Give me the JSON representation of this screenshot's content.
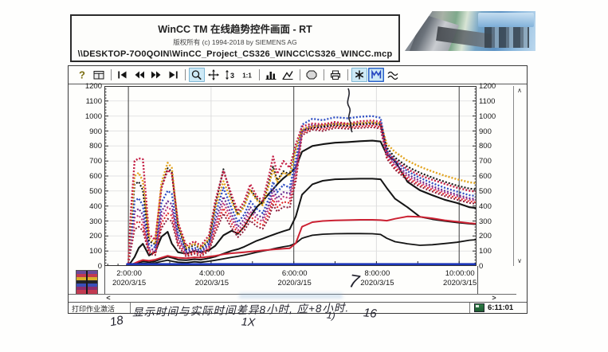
{
  "header": {
    "title": "WinCC TM 在线趋势控件画面 - RT",
    "copyright": "版权所有 (c) 1994-2018 by SIEMENS AG",
    "project_path": "\\\\DESKTOP-7O0QOIN\\WinCC_Project_CS326_WINCC\\CS326_WINCC.mcp"
  },
  "toolbar": {
    "buttons": [
      {
        "name": "help"
      },
      {
        "name": "dialog"
      },
      {
        "name": "sep"
      },
      {
        "name": "first"
      },
      {
        "name": "prev"
      },
      {
        "name": "next"
      },
      {
        "name": "last"
      },
      {
        "name": "sep"
      },
      {
        "name": "zoom-area",
        "highlighted": true
      },
      {
        "name": "move"
      },
      {
        "name": "scale-vertical"
      },
      {
        "name": "one-one"
      },
      {
        "name": "sep"
      },
      {
        "name": "bars"
      },
      {
        "name": "curve"
      },
      {
        "name": "sep"
      },
      {
        "name": "stop"
      },
      {
        "name": "sep"
      },
      {
        "name": "print"
      },
      {
        "name": "sep"
      },
      {
        "name": "star",
        "highlighted": true
      },
      {
        "name": "save",
        "highlighted": true,
        "strong": true
      },
      {
        "name": "curves"
      }
    ]
  },
  "scrollbars": {
    "up": "∧",
    "down": "∨",
    "left": "<",
    "right": ">"
  },
  "statusbar": {
    "print_job": "打印作业激活",
    "time": "6:11:01"
  },
  "annotations": {
    "sentence": "显示时间与实际时间差异8小时, 应+8小时.",
    "mark_7": "7",
    "mark_18": "18",
    "mark_1x": "1X",
    "mark_paren": "1)",
    "mark_16": "16"
  },
  "chart_data": {
    "type": "line",
    "title": "WinCC online trend control",
    "ylim": [
      0,
      1200
    ],
    "y_tick_step": 100,
    "x_range_hours": [
      1.42,
      10.42
    ],
    "x_ticks": [
      {
        "hour": 2,
        "time": "2:00:00",
        "date": "2020/3/15"
      },
      {
        "hour": 4,
        "time": "4:00:00",
        "date": "2020/3/15"
      },
      {
        "hour": 6,
        "time": "6:00:00",
        "date": "2020/3/15"
      },
      {
        "hour": 8,
        "time": "8:00:00",
        "date": "2020/3/15"
      },
      {
        "hour": 10,
        "time": "10:00:00",
        "date": "2020/3/15"
      }
    ],
    "dark_vlines_hours": [
      2,
      6,
      10
    ],
    "light_vlines_hours": [
      4,
      8
    ],
    "x": [
      1.95,
      2.0,
      2.05,
      2.15,
      2.25,
      2.35,
      2.5,
      2.65,
      2.8,
      2.95,
      3.05,
      3.2,
      3.4,
      3.6,
      3.75,
      3.95,
      4.1,
      4.3,
      4.5,
      4.65,
      4.8,
      4.95,
      5.1,
      5.25,
      5.4,
      5.5,
      5.6,
      5.75,
      5.9,
      6.05,
      6.2,
      6.45,
      6.7,
      7.0,
      7.3,
      7.6,
      7.9,
      8.1,
      8.25,
      8.45,
      8.75,
      9.05,
      9.35,
      9.65,
      9.95,
      10.25,
      10.42
    ],
    "series": [
      {
        "name": "pen-black-low",
        "color": "#151515",
        "width": 1.8,
        "dash": false,
        "y": [
          1,
          2,
          4,
          8,
          14,
          18,
          15,
          20,
          30,
          38,
          32,
          25,
          22,
          28,
          25,
          32,
          38,
          48,
          58,
          64,
          72,
          82,
          92,
          100,
          108,
          114,
          120,
          128,
          135,
          152,
          185,
          205,
          212,
          215,
          216,
          216,
          215,
          210,
          185,
          162,
          148,
          138,
          142,
          150,
          158,
          172,
          175
        ]
      },
      {
        "name": "pen-black-mid",
        "color": "#151515",
        "width": 2,
        "dash": false,
        "y": [
          1,
          2,
          5,
          12,
          22,
          30,
          25,
          32,
          48,
          62,
          55,
          42,
          38,
          45,
          42,
          52,
          62,
          82,
          102,
          112,
          128,
          148,
          168,
          182,
          198,
          208,
          218,
          232,
          245,
          330,
          475,
          545,
          568,
          578,
          580,
          582,
          582,
          578,
          520,
          448,
          392,
          328,
          312,
          300,
          290,
          282,
          278
        ]
      },
      {
        "name": "pen-black-high",
        "color": "#151515",
        "width": 2.1,
        "dash": false,
        "y": [
          2,
          3,
          20,
          60,
          120,
          148,
          70,
          95,
          195,
          228,
          150,
          92,
          82,
          100,
          92,
          105,
          135,
          205,
          235,
          215,
          262,
          330,
          392,
          432,
          482,
          512,
          545,
          585,
          618,
          658,
          762,
          800,
          812,
          822,
          826,
          832,
          836,
          830,
          742,
          700,
          562,
          505,
          472,
          442,
          420,
          392,
          386
        ]
      },
      {
        "name": "pen-red-solid",
        "color": "#cc2233",
        "width": 2,
        "dash": false,
        "y": [
          2,
          3,
          8,
          18,
          30,
          40,
          35,
          42,
          55,
          68,
          62,
          55,
          52,
          58,
          56,
          62,
          68,
          78,
          85,
          88,
          92,
          96,
          100,
          104,
          108,
          110,
          112,
          115,
          118,
          152,
          262,
          292,
          300,
          304,
          306,
          308,
          308,
          306,
          302,
          315,
          330,
          328,
          318,
          305,
          295,
          285,
          282
        ]
      },
      {
        "name": "pen-darkred",
        "color": "#8e1d3c",
        "width": 2,
        "dash": true,
        "y": [
          5,
          8,
          95,
          245,
          262,
          235,
          82,
          72,
          252,
          315,
          298,
          135,
          62,
          82,
          62,
          102,
          218,
          350,
          252,
          192,
          235,
          302,
          265,
          248,
          322,
          408,
          362,
          395,
          388,
          565,
          872,
          908,
          900,
          920,
          915,
          920,
          925,
          916,
          716,
          642,
          572,
          530,
          496,
          466,
          442,
          420,
          414
        ]
      },
      {
        "name": "pen-red2",
        "color": "#e02828",
        "width": 2,
        "dash": true,
        "y": [
          5,
          8,
          112,
          282,
          298,
          268,
          95,
          82,
          285,
          352,
          335,
          152,
          72,
          92,
          72,
          115,
          245,
          385,
          282,
          215,
          260,
          332,
          292,
          272,
          352,
          442,
          392,
          428,
          420,
          595,
          882,
          918,
          910,
          930,
          925,
          930,
          935,
          926,
          728,
          655,
          585,
          542,
          508,
          478,
          453,
          430,
          424
        ]
      },
      {
        "name": "pen-magenta",
        "color": "#c23a7c",
        "width": 2.2,
        "dash": true,
        "y": [
          5,
          8,
          132,
          322,
          338,
          302,
          108,
          92,
          322,
          392,
          372,
          172,
          82,
          102,
          82,
          128,
          272,
          422,
          312,
          238,
          285,
          362,
          318,
          298,
          382,
          478,
          422,
          462,
          452,
          625,
          892,
          928,
          920,
          940,
          934,
          940,
          944,
          936,
          740,
          668,
          598,
          555,
          520,
          490,
          465,
          442,
          436
        ]
      },
      {
        "name": "pen-purple",
        "color": "#6b2e92",
        "width": 2.2,
        "dash": true,
        "y": [
          5,
          8,
          152,
          362,
          382,
          342,
          122,
          102,
          362,
          432,
          412,
          192,
          92,
          112,
          92,
          142,
          302,
          462,
          342,
          262,
          312,
          392,
          342,
          322,
          412,
          512,
          452,
          492,
          482,
          655,
          902,
          942,
          932,
          952,
          946,
          950,
          955,
          948,
          752,
          682,
          612,
          568,
          532,
          502,
          476,
          452,
          446
        ]
      },
      {
        "name": "pen-blue",
        "color": "#2e4ec4",
        "width": 2.3,
        "dash": true,
        "y": [
          5,
          8,
          185,
          432,
          452,
          402,
          145,
          122,
          422,
          502,
          482,
          222,
          102,
          122,
          102,
          152,
          342,
          522,
          382,
          292,
          342,
          432,
          382,
          352,
          452,
          562,
          492,
          542,
          522,
          705,
          942,
          982,
          972,
          992,
          985,
          995,
          1000,
          988,
          770,
          702,
          632,
          588,
          552,
          522,
          496,
          472,
          466
        ]
      },
      {
        "name": "pen-black-marker",
        "color": "#141414",
        "width": 2.1,
        "dash": true,
        "y": [
          5,
          8,
          225,
          545,
          562,
          505,
          165,
          145,
          525,
          652,
          628,
          262,
          112,
          142,
          115,
          172,
          405,
          645,
          452,
          342,
          402,
          512,
          450,
          412,
          555,
          662,
          572,
          632,
          610,
          780,
          902,
          922,
          928,
          938,
          935,
          945,
          950,
          942,
          790,
          722,
          662,
          622,
          590,
          562,
          536,
          516,
          510
        ]
      },
      {
        "name": "pen-orange",
        "color": "#e2a31d",
        "width": 2.4,
        "dash": true,
        "y": [
          5,
          8,
          260,
          600,
          622,
          565,
          185,
          155,
          555,
          688,
          655,
          275,
          122,
          150,
          122,
          182,
          385,
          565,
          430,
          335,
          395,
          505,
          440,
          405,
          540,
          645,
          560,
          625,
          600,
          770,
          912,
          932,
          938,
          948,
          945,
          952,
          958,
          950,
          815,
          760,
          702,
          662,
          630,
          602,
          578,
          558,
          552
        ]
      },
      {
        "name": "pen-red1",
        "color": "#c41f45",
        "width": 2.4,
        "dash": true,
        "y": [
          5,
          10,
          320,
          700,
          718,
          712,
          210,
          175,
          520,
          640,
          615,
          290,
          135,
          165,
          135,
          205,
          430,
          635,
          470,
          365,
          430,
          545,
          465,
          435,
          600,
          730,
          615,
          700,
          655,
          810,
          930,
          950,
          945,
          960,
          950,
          965,
          970,
          960,
          760,
          705,
          645,
          605,
          575,
          548,
          522,
          502,
          496
        ]
      },
      {
        "name": "pen-blue-flat",
        "color": "#1c35b8",
        "width": 2.6,
        "dash": false,
        "y": 12
      }
    ]
  }
}
